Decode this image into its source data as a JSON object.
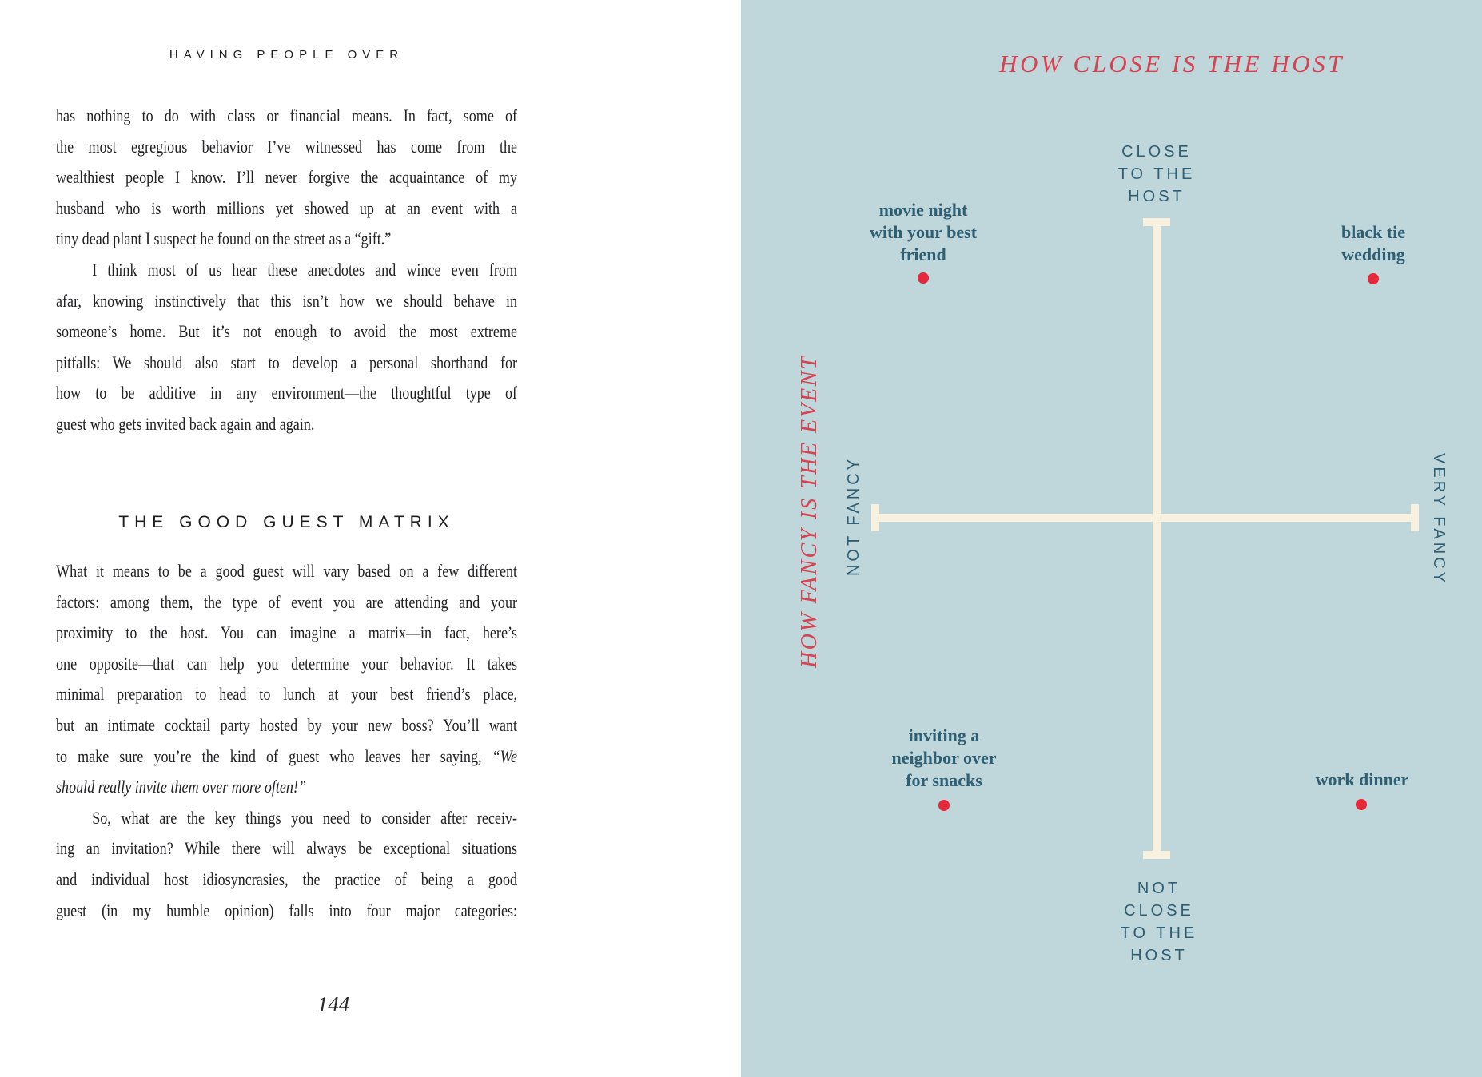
{
  "colors": {
    "ink": "#212124",
    "matrix_bg": "#bfd6da",
    "teal": "#2e5f74",
    "red_title": "#d8414f",
    "red_dot": "#e6293a",
    "cream": "#f8f1df"
  },
  "left_page": {
    "running_head": "HAVING PEOPLE OVER",
    "section_heading": "THE GOOD GUEST MATRIX",
    "page_number": "144",
    "blocks": [
      {
        "lines": [
          {
            "seg": [
              {
                "t": "has nothing to do with class or financial means. In fact, some of"
              }
            ],
            "j": true
          },
          {
            "seg": [
              {
                "t": "the most egregious behavior I’ve witnessed has come from the"
              }
            ],
            "j": true
          },
          {
            "seg": [
              {
                "t": "wealthiest people I know. I’ll never forgive the acquaintance of my"
              }
            ],
            "j": true
          },
          {
            "seg": [
              {
                "t": "husband who is worth millions yet showed up at an event with a"
              }
            ],
            "j": true
          },
          {
            "seg": [
              {
                "t": "tiny dead plant I suspect he found on the street as a “gift.”"
              }
            ],
            "j": false
          },
          {
            "seg": [
              {
                "t": "I think most of us hear these anecdotes and wince even from"
              }
            ],
            "j": true,
            "ind": true
          },
          {
            "seg": [
              {
                "t": "afar, knowing instinctively that this isn’t how we should behave in"
              }
            ],
            "j": true
          },
          {
            "seg": [
              {
                "t": "someone’s home. But it’s not enough to avoid the most extreme"
              }
            ],
            "j": true
          },
          {
            "seg": [
              {
                "t": "pitfalls: We should also start to develop a personal shorthand for"
              }
            ],
            "j": true
          },
          {
            "seg": [
              {
                "t": "how to be additive in any environment—the thoughtful type of"
              }
            ],
            "j": true
          },
          {
            "seg": [
              {
                "t": "guest who gets invited back again and again."
              }
            ],
            "j": false
          }
        ]
      },
      {
        "lines": [
          {
            "seg": [
              {
                "t": "What it means to be a good guest will vary based on a few different"
              }
            ],
            "j": true
          },
          {
            "seg": [
              {
                "t": "factors: among them, the type of event you are attending and your"
              }
            ],
            "j": true
          },
          {
            "seg": [
              {
                "t": "proximity to the host. You can imagine a matrix—in fact, here’s"
              }
            ],
            "j": true
          },
          {
            "seg": [
              {
                "t": "one opposite—that can help you determine your behavior. It takes"
              }
            ],
            "j": true
          },
          {
            "seg": [
              {
                "t": "minimal preparation to head to lunch at your best friend’s place,"
              }
            ],
            "j": true
          },
          {
            "seg": [
              {
                "t": "but an intimate cocktail party hosted by your new boss? You’ll want"
              }
            ],
            "j": true
          },
          {
            "seg": [
              {
                "t": "to make sure you’re the kind of guest who leaves her saying, "
              },
              {
                "t": "“We",
                "i": true
              }
            ],
            "j": true
          },
          {
            "seg": [
              {
                "t": "should really invite them over more often!”",
                "i": true
              }
            ],
            "j": false
          },
          {
            "seg": [
              {
                "t": "So, what are the key things you need to consider after receiv-"
              }
            ],
            "j": true,
            "ind": true
          },
          {
            "seg": [
              {
                "t": "ing an invitation? While there will always be exceptional situations"
              }
            ],
            "j": true
          },
          {
            "seg": [
              {
                "t": "and individual host idiosyncrasies, the practice of being a good"
              }
            ],
            "j": true
          },
          {
            "seg": [
              {
                "t": "guest (in my humble opinion) falls into four major categories:"
              }
            ],
            "j": true
          }
        ]
      }
    ]
  },
  "right_page": {
    "title": "HOW CLOSE IS THE HOST",
    "side_title": "HOW FANCY IS THE EVENT",
    "axis_labels": {
      "top": "CLOSE\nTO THE\nHOST",
      "bottom": "NOT\nCLOSE\nTO THE\nHOST",
      "left": "NOT FANCY",
      "right": "VERY FANCY"
    },
    "points": [
      {
        "label": "movie night\nwith your best\nfriend",
        "quadrant": "close-to-host / not-fancy"
      },
      {
        "label": "black tie\nwedding",
        "quadrant": "close-to-host / very-fancy"
      },
      {
        "label": "inviting a\nneighbor over\nfor snacks",
        "quadrant": "not-close-to-host / not-fancy"
      },
      {
        "label": "work dinner",
        "quadrant": "not-close-to-host / very-fancy"
      }
    ]
  }
}
